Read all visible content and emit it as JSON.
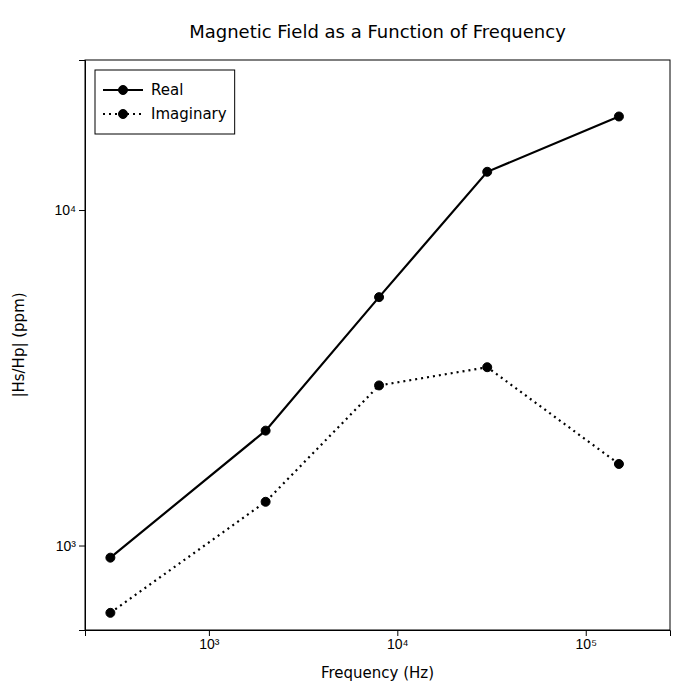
{
  "chart_data": {
    "type": "line",
    "title": "Magnetic Field as a Function of Frequency",
    "xlabel": "Frequency (Hz)",
    "ylabel": "|Hs/Hp| (ppm)",
    "log": true,
    "x": [
      300,
      2000,
      8000,
      30000,
      150000
    ],
    "series": [
      {
        "name": "Real",
        "color": "#000000",
        "line_style": "solid",
        "marker": "circle",
        "values": [
          920,
          2200,
          5500,
          13000,
          19000
        ]
      },
      {
        "name": "Imaginary",
        "color": "#000000",
        "line_style": "dotted",
        "marker": "circle",
        "values": [
          630,
          1350,
          3000,
          3400,
          1750
        ]
      }
    ],
    "xlim": [
      220,
      280000
    ],
    "ylim": [
      560,
      28000
    ],
    "xticks": [
      {
        "value": 1000,
        "label": "10³"
      },
      {
        "value": 10000,
        "label": "10⁴"
      },
      {
        "value": 100000,
        "label": "10⁵"
      }
    ],
    "yticks": [
      {
        "value": 1000,
        "label": "10³"
      },
      {
        "value": 10000,
        "label": "10⁴"
      }
    ],
    "legend": "upper left",
    "grid": false
  }
}
